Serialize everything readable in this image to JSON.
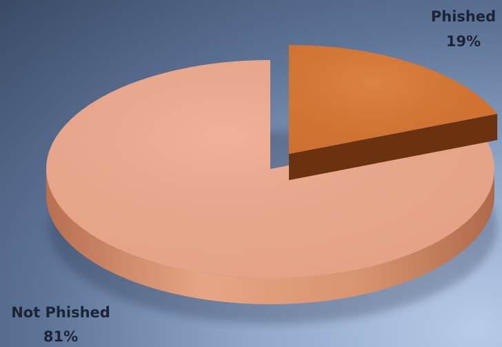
{
  "chart_data": {
    "type": "pie",
    "categories": [
      "Not Phished",
      "Phished"
    ],
    "values": [
      81,
      19
    ],
    "labels": [
      {
        "name": "Not Phished",
        "pct": "81%"
      },
      {
        "name": "Phished",
        "pct": "19%"
      }
    ],
    "colors": [
      "#efa98c",
      "#d87530"
    ],
    "side_colors": [
      "#d48866",
      "#6b3210"
    ],
    "exploded": "Phished",
    "style": "3d",
    "background": [
      "#3a4a66",
      "#b8cbe8"
    ]
  }
}
